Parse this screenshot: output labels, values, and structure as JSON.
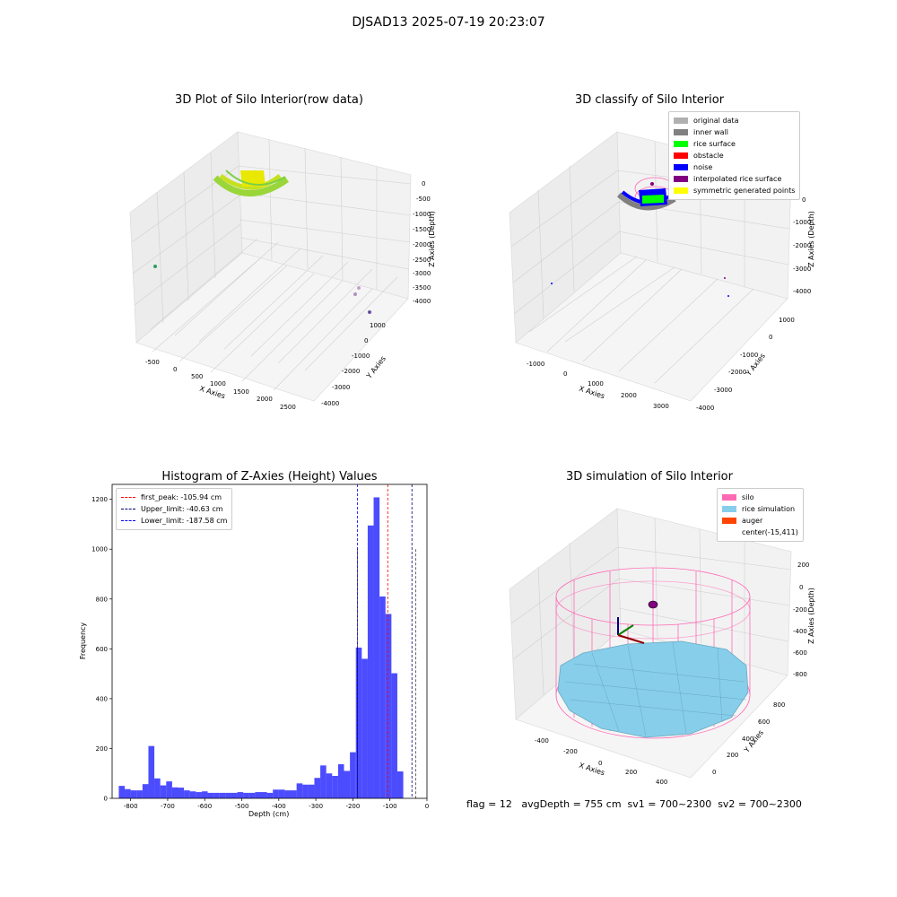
{
  "suptitle": "DJSAD13 2025-07-19 20:23:07",
  "footer": "flag = 12   avgDepth = 755 cm  sv1 = 700~2300  sv2 = 700~2300",
  "panels": {
    "raw": {
      "title": "3D Plot of Silo Interior(row data)",
      "xlabel": "X Axies",
      "ylabel": "Y Axies",
      "zlabel": "Z Axies (Depth)",
      "xticks": [
        "-500",
        "0",
        "500",
        "1000",
        "1500",
        "2000",
        "2500"
      ],
      "yticks": [
        "1000",
        "0",
        "-1000",
        "-2000",
        "-3000",
        "-4000"
      ],
      "zticks": [
        "0",
        "-500",
        "-1000",
        "-1500",
        "-2000",
        "-2500",
        "-3000",
        "-3500",
        "-4000"
      ]
    },
    "classify": {
      "title": "3D classify of Silo Interior",
      "xlabel": "X Axies",
      "ylabel": "Y Axies",
      "zlabel": "Z Axies (Depth)",
      "xticks": [
        "-1000",
        "0",
        "1000",
        "2000",
        "3000"
      ],
      "yticks": [
        "1000",
        "0",
        "-1000",
        "-2000",
        "-3000",
        "-4000"
      ],
      "zticks": [
        "0",
        "-1000",
        "-2000",
        "-3000",
        "-4000"
      ],
      "legend": [
        {
          "label": "original data",
          "color": "#b0b0b0"
        },
        {
          "label": "inner wall",
          "color": "#808080"
        },
        {
          "label": "rice surface",
          "color": "#00ff00"
        },
        {
          "label": "obstacle",
          "color": "#ff0000"
        },
        {
          "label": "noise",
          "color": "#0000ff"
        },
        {
          "label": "interpolated rice surface",
          "color": "#800080"
        },
        {
          "label": "symmetric generated points",
          "color": "#ffff00"
        }
      ]
    },
    "sim": {
      "title": "3D simulation of Silo Interior",
      "xlabel": "X Axies",
      "ylabel": "Y Axies",
      "zlabel": "Z Axies (Depth)",
      "xticks": [
        "-400",
        "-200",
        "0",
        "200",
        "400"
      ],
      "yticks": [
        "800",
        "600",
        "400",
        "200",
        "0"
      ],
      "zticks": [
        "200",
        "0",
        "-200",
        "-400",
        "-600",
        "-800"
      ],
      "legend": [
        {
          "label": "silo",
          "color": "#ff69b4"
        },
        {
          "label": "rice simulation",
          "color": "#87ceeb"
        },
        {
          "label": "auger",
          "color": "#ff4500"
        },
        {
          "label": "center(-15,411)",
          "color": "#ffffff"
        }
      ]
    }
  },
  "chart_data": [
    {
      "type": "bar",
      "title": "Histogram of Z-Axies (Height) Values",
      "xlabel": "Depth (cm)",
      "ylabel": "Frequency",
      "xlim": [
        -850,
        0
      ],
      "ylim": [
        0,
        1260
      ],
      "xticks": [
        -800,
        -700,
        -600,
        -500,
        -400,
        -300,
        -200,
        -100,
        0
      ],
      "yticks": [
        0,
        200,
        400,
        600,
        800,
        1000,
        1200
      ],
      "bar_color": "#0000ff",
      "bin_start": -832,
      "bin_width": 16,
      "values": [
        50,
        37,
        32,
        32,
        57,
        210,
        80,
        52,
        68,
        44,
        43,
        32,
        28,
        25,
        28,
        22,
        22,
        22,
        22,
        22,
        25,
        22,
        22,
        25,
        25,
        22,
        35,
        35,
        32,
        32,
        60,
        55,
        55,
        82,
        132,
        100,
        90,
        137,
        110,
        185,
        605,
        560,
        1095,
        1208,
        810,
        740,
        502,
        108
      ],
      "vlines": [
        {
          "label": "first_peak: -105.94 cm",
          "x": -105.94,
          "color": "#ff0000"
        },
        {
          "label": "Upper_limit: -40.63 cm",
          "x": -40.63,
          "color": "#000080"
        },
        {
          "label": "Lower_limit: -187.58 cm",
          "x": -187.58,
          "color": "#0000ff"
        }
      ],
      "extra_vlines": [
        {
          "x": -30,
          "color": "#000000"
        },
        {
          "x": -187.58,
          "color": "#000000"
        }
      ]
    }
  ]
}
